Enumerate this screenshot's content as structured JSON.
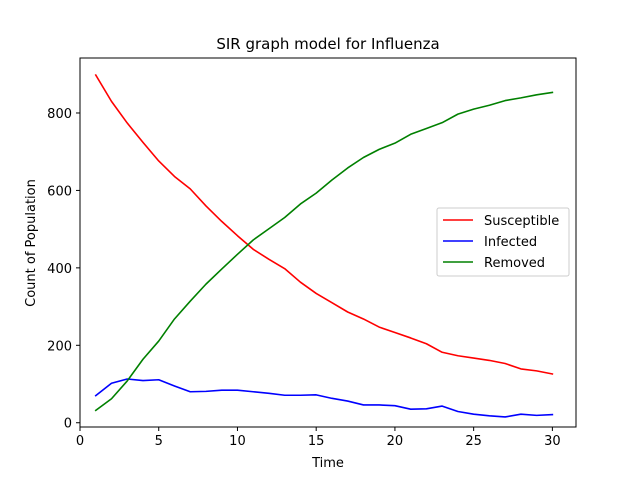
{
  "chart_data": {
    "type": "line",
    "title": "SIR graph model for Influenza",
    "xlabel": "Time",
    "ylabel": "Count of Population",
    "xlim": [
      0,
      31.5
    ],
    "ylim": [
      -11,
      942
    ],
    "xticks": [
      0,
      5,
      10,
      15,
      20,
      25,
      30
    ],
    "yticks": [
      0,
      200,
      400,
      600,
      800
    ],
    "grid": false,
    "legend_position": "center-right",
    "x": [
      1,
      2,
      3,
      4,
      5,
      6,
      7,
      8,
      9,
      10,
      11,
      12,
      13,
      14,
      15,
      16,
      17,
      18,
      19,
      20,
      21,
      22,
      23,
      24,
      25,
      26,
      27,
      28,
      29,
      30
    ],
    "series": [
      {
        "name": "Susceptible",
        "color": "#ff0000",
        "values": [
          898,
          830,
          774,
          724,
          676,
          636,
          604,
          560,
          520,
          483,
          448,
          422,
          398,
          363,
          334,
          310,
          286,
          268,
          247,
          233,
          219,
          204,
          182,
          173,
          167,
          161,
          153,
          139,
          134,
          126
        ]
      },
      {
        "name": "Infected",
        "color": "#0000ff",
        "values": [
          70,
          102,
          113,
          109,
          111,
          95,
          80,
          81,
          84,
          84,
          80,
          76,
          71,
          71,
          72,
          63,
          56,
          46,
          46,
          44,
          35,
          36,
          43,
          29,
          22,
          18,
          15,
          22,
          19,
          21
        ]
      },
      {
        "name": "Removed",
        "color": "#008000",
        "values": [
          32,
          62,
          108,
          164,
          211,
          268,
          314,
          358,
          397,
          435,
          472,
          501,
          530,
          565,
          593,
          627,
          658,
          685,
          706,
          722,
          745,
          760,
          775,
          797,
          810,
          820,
          832,
          839,
          847,
          853
        ]
      }
    ]
  }
}
